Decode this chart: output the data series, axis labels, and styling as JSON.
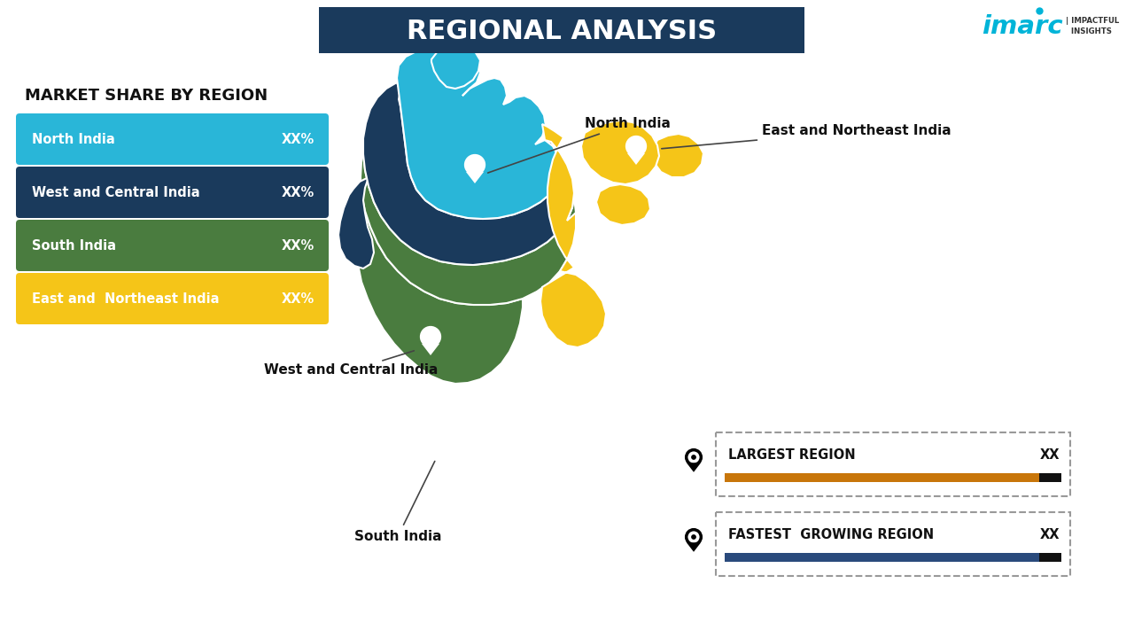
{
  "title": "REGIONAL ANALYSIS",
  "title_bg": "#1a3a5c",
  "title_color": "#ffffff",
  "subtitle": "MARKET SHARE BY REGION",
  "background_color": "#ffffff",
  "legend_items": [
    {
      "label": "North India",
      "value": "XX%",
      "color": "#29b6d8"
    },
    {
      "label": "West and Central India",
      "value": "XX%",
      "color": "#1a3a5c"
    },
    {
      "label": "South India",
      "value": "XX%",
      "color": "#4a7c3f"
    },
    {
      "label": "East and  Northeast India",
      "value": "XX%",
      "color": "#f5c518"
    }
  ],
  "info_boxes": [
    {
      "label": "LARGEST REGION",
      "value": "XX",
      "bar_color": "#c8760a"
    },
    {
      "label": "FASTEST  GROWING REGION",
      "value": "XX",
      "bar_color": "#2a4a7c"
    }
  ],
  "colors": {
    "north": "#29b6d8",
    "west_central": "#1a3a5c",
    "south": "#4a7c3f",
    "east_northeast": "#f5c518"
  },
  "imarc_color": "#00b4d8"
}
